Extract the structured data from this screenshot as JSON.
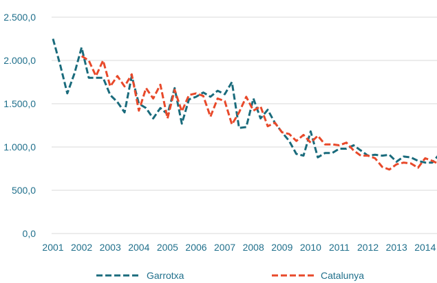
{
  "chart_data": {
    "type": "line",
    "xlabel": "",
    "ylabel": "",
    "x_ticks": [
      "2001",
      "2002",
      "2003",
      "2004",
      "2005",
      "2006",
      "2007",
      "2008",
      "2009",
      "2010",
      "2011",
      "2012",
      "2013",
      "2014"
    ],
    "y_ticks": [
      "0,0",
      "500,0",
      "1.000,0",
      "1.500,0",
      "2.000,0",
      "2.500,0"
    ],
    "ylim": [
      0,
      2500
    ],
    "xlim": [
      2001,
      2014.5
    ],
    "grid": true,
    "legend_position": "bottom",
    "series": [
      {
        "name": "Garrotxa",
        "color": "#1a6b7c",
        "dash": "dashed",
        "x": [
          2001.0,
          2001.25,
          2001.5,
          2001.75,
          2002.0,
          2002.25,
          2002.5,
          2002.75,
          2003.0,
          2003.25,
          2003.5,
          2003.75,
          2004.0,
          2004.25,
          2004.5,
          2004.75,
          2005.0,
          2005.25,
          2005.5,
          2005.75,
          2006.0,
          2006.25,
          2006.5,
          2006.75,
          2007.0,
          2007.25,
          2007.5,
          2007.75,
          2008.0,
          2008.25,
          2008.5,
          2008.75,
          2009.0,
          2009.25,
          2009.5,
          2009.75,
          2010.0,
          2010.25,
          2010.5,
          2010.75,
          2011.0,
          2011.25,
          2011.5,
          2011.75,
          2012.0,
          2012.25,
          2012.5,
          2012.75,
          2013.0,
          2013.25,
          2013.5,
          2013.75,
          2014.0,
          2014.25,
          2014.5
        ],
        "values": [
          2250,
          1950,
          1620,
          1850,
          2150,
          1800,
          1800,
          1800,
          1600,
          1520,
          1400,
          1820,
          1500,
          1450,
          1330,
          1450,
          1380,
          1680,
          1270,
          1550,
          1580,
          1630,
          1580,
          1650,
          1610,
          1750,
          1220,
          1230,
          1560,
          1330,
          1430,
          1280,
          1170,
          1070,
          920,
          900,
          1180,
          880,
          930,
          930,
          980,
          980,
          1020,
          960,
          900,
          910,
          900,
          910,
          830,
          890,
          880,
          840,
          820,
          820,
          920
        ]
      },
      {
        "name": "Catalunya",
        "color": "#e8492a",
        "dash": "dashed",
        "x": [
          2002.0,
          2002.25,
          2002.5,
          2002.75,
          2003.0,
          2003.25,
          2003.5,
          2003.75,
          2004.0,
          2004.25,
          2004.5,
          2004.75,
          2005.0,
          2005.25,
          2005.5,
          2005.75,
          2006.0,
          2006.25,
          2006.5,
          2006.75,
          2007.0,
          2007.25,
          2007.5,
          2007.75,
          2008.0,
          2008.25,
          2008.5,
          2008.75,
          2009.0,
          2009.25,
          2009.5,
          2009.75,
          2010.0,
          2010.25,
          2010.5,
          2010.75,
          2011.0,
          2011.25,
          2011.5,
          2011.75,
          2012.0,
          2012.25,
          2012.5,
          2012.75,
          2013.0,
          2013.25,
          2013.5,
          2013.75,
          2014.0,
          2014.25,
          2014.5
        ],
        "values": [
          2050,
          2000,
          1820,
          2000,
          1700,
          1820,
          1700,
          1840,
          1420,
          1680,
          1560,
          1720,
          1330,
          1660,
          1410,
          1600,
          1620,
          1590,
          1350,
          1560,
          1530,
          1260,
          1400,
          1580,
          1420,
          1470,
          1240,
          1280,
          1170,
          1150,
          1070,
          1140,
          1050,
          1130,
          1030,
          1030,
          1020,
          1050,
          960,
          900,
          900,
          870,
          770,
          740,
          800,
          820,
          810,
          760,
          870,
          840,
          800
        ]
      }
    ]
  }
}
